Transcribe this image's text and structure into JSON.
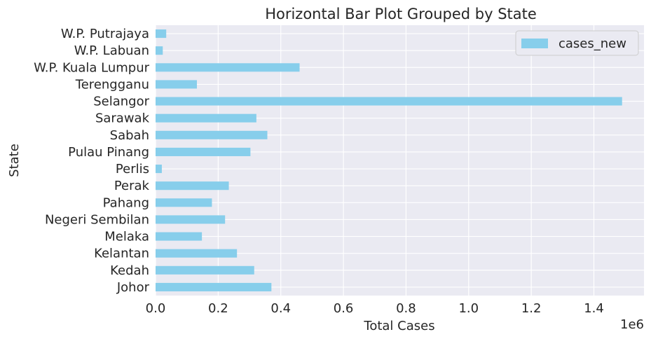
{
  "chart_data": {
    "type": "bar",
    "orientation": "horizontal",
    "title": "Horizontal Bar Plot Grouped by State",
    "xlabel": "Total Cases",
    "ylabel": "State",
    "x_offset_label": "1e6",
    "xlim": [
      0,
      1.56
    ],
    "xticks": [
      0.0,
      0.2,
      0.4,
      0.6,
      0.8,
      1.0,
      1.2,
      1.4
    ],
    "xtick_labels": [
      "0.0",
      "0.2",
      "0.4",
      "0.6",
      "0.8",
      "1.0",
      "1.2",
      "1.4"
    ],
    "categories": [
      "Johor",
      "Kedah",
      "Kelantan",
      "Melaka",
      "Negeri Sembilan",
      "Pahang",
      "Perak",
      "Perlis",
      "Pulau Pinang",
      "Sabah",
      "Sarawak",
      "Selangor",
      "Terengganu",
      "W.P. Kuala Lumpur",
      "W.P. Labuan",
      "W.P. Putrajaya"
    ],
    "series": [
      {
        "name": "cases_new",
        "color": "#87ceeb",
        "values": [
          0.37,
          0.315,
          0.26,
          0.148,
          0.222,
          0.18,
          0.234,
          0.02,
          0.303,
          0.357,
          0.322,
          1.49,
          0.132,
          0.46,
          0.023,
          0.034
        ]
      }
    ],
    "grid": true,
    "legend_position": "top-right",
    "background": "#eaeaf2"
  }
}
